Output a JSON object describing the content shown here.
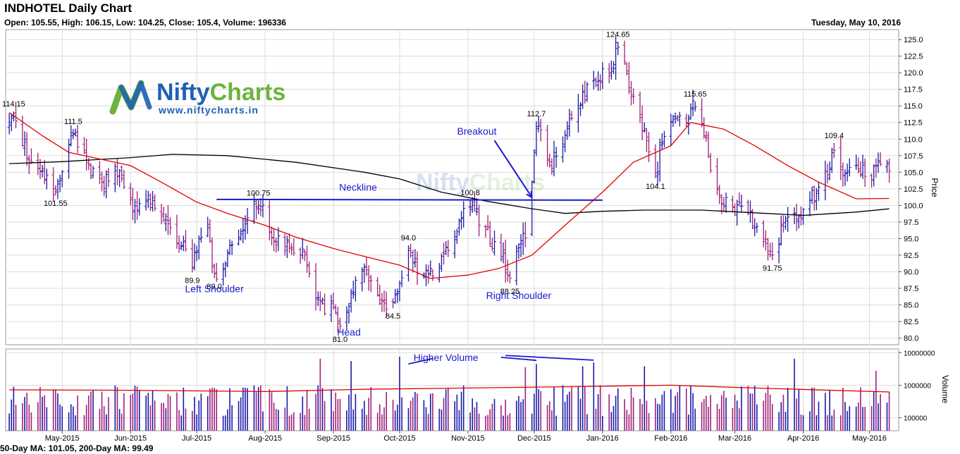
{
  "header": {
    "title": "INDHOTEL Daily Chart",
    "ohlc": "Open: 105.55, High: 106.15, Low: 104.25, Close: 105.4, Volume: 196336",
    "date": "Tuesday, May 10, 2016"
  },
  "footer": {
    "ma_text": "50-Day MA: 101.05, 200-Day MA: 99.49"
  },
  "watermark": {
    "brand_left": "Nifty",
    "brand_right": "Charts",
    "url": "www.niftycharts.in"
  },
  "colors": {
    "up": "#1a1aa8",
    "down": "#a0207a",
    "ma50": "#e00000",
    "ma200": "#000000",
    "annotation": "#1a1acc",
    "grid": "#dcdcdc",
    "panel_border": "#999999",
    "logo_blue": "#1f5fb4",
    "logo_green": "#6cb33f"
  },
  "chart_data": [
    {
      "type": "ohlc",
      "title": "INDHOTEL Daily Chart",
      "ylabel": "Price",
      "ylim": [
        79,
        126.5
      ],
      "yticks": [
        80.0,
        82.5,
        85.0,
        87.5,
        90.0,
        92.5,
        95.0,
        97.5,
        100.0,
        102.5,
        105.0,
        107.5,
        110.0,
        112.5,
        115.0,
        117.5,
        120.0,
        122.5,
        125.0
      ],
      "x_range": [
        "2015-04-06",
        "2016-05-13"
      ],
      "xticks": [
        {
          "date": "2015-05-01",
          "label": "May-2015"
        },
        {
          "date": "2015-06-01",
          "label": "Jun-2015"
        },
        {
          "date": "2015-07-01",
          "label": "Jul-2015"
        },
        {
          "date": "2015-08-01",
          "label": "Aug-2015"
        },
        {
          "date": "2015-09-01",
          "label": "Sep-2015"
        },
        {
          "date": "2015-10-01",
          "label": "Oct-2015"
        },
        {
          "date": "2015-11-01",
          "label": "Nov-2015"
        },
        {
          "date": "2015-12-01",
          "label": "Dec-2015"
        },
        {
          "date": "2016-01-01",
          "label": "Jan-2016"
        },
        {
          "date": "2016-02-01",
          "label": "Feb-2016"
        },
        {
          "date": "2016-03-01",
          "label": "Mar-2016"
        },
        {
          "date": "2016-04-01",
          "label": "Apr-2016"
        },
        {
          "date": "2016-05-01",
          "label": "May-2016"
        }
      ],
      "grid": true,
      "anchors": [
        [
          "2015-04-07",
          111.5
        ],
        [
          "2015-04-09",
          114.15
        ],
        [
          "2015-04-16",
          107
        ],
        [
          "2015-04-24",
          104.5
        ],
        [
          "2015-04-28",
          101.55
        ],
        [
          "2015-05-04",
          108.5
        ],
        [
          "2015-05-06",
          111.5
        ],
        [
          "2015-05-13",
          105.5
        ],
        [
          "2015-05-20",
          103.5
        ],
        [
          "2015-05-27",
          105
        ],
        [
          "2015-06-02",
          100
        ],
        [
          "2015-06-10",
          101
        ],
        [
          "2015-06-17",
          97
        ],
        [
          "2015-06-26",
          93
        ],
        [
          "2015-06-29",
          89.9
        ],
        [
          "2015-07-02",
          96
        ],
        [
          "2015-07-06",
          97
        ],
        [
          "2015-07-09",
          89
        ],
        [
          "2015-07-16",
          93
        ],
        [
          "2015-07-24",
          98.5
        ],
        [
          "2015-07-29",
          100.75
        ],
        [
          "2015-08-05",
          95
        ],
        [
          "2015-08-12",
          94
        ],
        [
          "2015-08-19",
          92.5
        ],
        [
          "2015-08-24",
          86.5
        ],
        [
          "2015-08-28",
          84.5
        ],
        [
          "2015-09-01",
          85
        ],
        [
          "2015-09-04",
          81
        ],
        [
          "2015-09-10",
          88
        ],
        [
          "2015-09-15",
          90.5
        ],
        [
          "2015-09-21",
          86.5
        ],
        [
          "2015-09-28",
          84.5
        ],
        [
          "2015-10-01",
          88
        ],
        [
          "2015-10-05",
          94
        ],
        [
          "2015-10-08",
          91
        ],
        [
          "2015-10-14",
          89
        ],
        [
          "2015-10-21",
          92
        ],
        [
          "2015-10-27",
          96.5
        ],
        [
          "2015-11-02",
          100.8
        ],
        [
          "2015-11-06",
          98
        ],
        [
          "2015-11-12",
          94.5
        ],
        [
          "2015-11-17",
          92
        ],
        [
          "2015-11-20",
          88.25
        ],
        [
          "2015-11-24",
          94
        ],
        [
          "2015-11-27",
          96
        ],
        [
          "2015-11-30",
          103
        ],
        [
          "2015-12-02",
          112.7
        ],
        [
          "2015-12-08",
          106
        ],
        [
          "2015-12-14",
          110
        ],
        [
          "2015-12-21",
          115
        ],
        [
          "2015-12-28",
          119
        ],
        [
          "2016-01-04",
          120
        ],
        [
          "2016-01-08",
          124.65
        ],
        [
          "2016-01-13",
          118
        ],
        [
          "2016-01-18",
          113
        ],
        [
          "2016-01-22",
          108
        ],
        [
          "2016-01-25",
          104.1
        ],
        [
          "2016-01-28",
          110
        ],
        [
          "2016-02-02",
          113
        ],
        [
          "2016-02-09",
          113.5
        ],
        [
          "2016-02-12",
          115.65
        ],
        [
          "2016-02-16",
          111
        ],
        [
          "2016-02-19",
          106
        ],
        [
          "2016-02-24",
          101
        ],
        [
          "2016-03-01",
          99.5
        ],
        [
          "2016-03-07",
          99
        ],
        [
          "2016-03-11",
          97
        ],
        [
          "2016-03-15",
          94
        ],
        [
          "2016-03-18",
          91.75
        ],
        [
          "2016-03-22",
          96
        ],
        [
          "2016-03-24",
          99
        ],
        [
          "2016-03-29",
          98
        ],
        [
          "2016-04-04",
          101
        ],
        [
          "2016-04-08",
          102
        ],
        [
          "2016-04-12",
          105
        ],
        [
          "2016-04-15",
          109.4
        ],
        [
          "2016-04-20",
          104.5
        ],
        [
          "2016-04-25",
          106
        ],
        [
          "2016-05-02",
          104.5
        ],
        [
          "2016-05-06",
          106
        ],
        [
          "2016-05-10",
          105.4
        ]
      ],
      "ma50": [
        [
          "2015-04-07",
          114
        ],
        [
          "2015-04-22",
          110.5
        ],
        [
          "2015-05-04",
          108
        ],
        [
          "2015-05-18",
          107
        ],
        [
          "2015-06-01",
          106
        ],
        [
          "2015-06-15",
          103.5
        ],
        [
          "2015-07-01",
          100.5
        ],
        [
          "2015-07-15",
          98.8
        ],
        [
          "2015-08-01",
          97
        ],
        [
          "2015-08-15",
          95.2
        ],
        [
          "2015-09-01",
          93.5
        ],
        [
          "2015-09-15",
          92.3
        ],
        [
          "2015-10-01",
          91
        ],
        [
          "2015-10-15",
          89
        ],
        [
          "2015-11-01",
          89.5
        ],
        [
          "2015-11-15",
          90.5
        ],
        [
          "2015-11-30",
          92.5
        ],
        [
          "2015-12-15",
          97
        ],
        [
          "2016-01-01",
          102
        ],
        [
          "2016-01-15",
          106.5
        ],
        [
          "2016-02-01",
          109
        ],
        [
          "2016-02-10",
          112.5
        ],
        [
          "2016-02-25",
          111.5
        ],
        [
          "2016-03-10",
          109
        ],
        [
          "2016-03-25",
          106
        ],
        [
          "2016-04-08",
          103.5
        ],
        [
          "2016-04-25",
          101
        ],
        [
          "2016-05-10",
          101.05
        ]
      ],
      "ma200": [
        [
          "2015-04-07",
          106.3
        ],
        [
          "2015-05-01",
          106.6
        ],
        [
          "2015-06-01",
          107.2
        ],
        [
          "2015-06-20",
          107.7
        ],
        [
          "2015-07-15",
          107.5
        ],
        [
          "2015-08-15",
          106.5
        ],
        [
          "2015-09-15",
          105
        ],
        [
          "2015-10-01",
          104
        ],
        [
          "2015-10-20",
          102
        ],
        [
          "2015-11-10",
          100.6
        ],
        [
          "2015-11-30",
          99.5
        ],
        [
          "2015-12-15",
          98.8
        ],
        [
          "2015-12-31",
          99.1
        ],
        [
          "2016-01-20",
          99.3
        ],
        [
          "2016-02-15",
          99.3
        ],
        [
          "2016-03-15",
          98.8
        ],
        [
          "2016-04-01",
          98.5
        ],
        [
          "2016-04-25",
          99
        ],
        [
          "2016-05-10",
          99.49
        ]
      ],
      "labels": [
        {
          "date": "2015-04-09",
          "value": "114.15",
          "pos": "above"
        },
        {
          "date": "2015-05-06",
          "value": "111.5",
          "pos": "above"
        },
        {
          "date": "2015-04-28",
          "value": "101.55",
          "pos": "below"
        },
        {
          "date": "2015-06-29",
          "value": "89.9",
          "pos": "below"
        },
        {
          "date": "2015-07-09",
          "value": "89.0",
          "pos": "below"
        },
        {
          "date": "2015-07-29",
          "value": "100.75",
          "pos": "above"
        },
        {
          "date": "2015-09-04",
          "value": "81.0",
          "pos": "below"
        },
        {
          "date": "2015-09-28",
          "value": "84.5",
          "pos": "below"
        },
        {
          "date": "2015-10-05",
          "value": "94.0",
          "pos": "above"
        },
        {
          "date": "2015-11-02",
          "value": "100.8",
          "pos": "above"
        },
        {
          "date": "2015-11-20",
          "value": "88.25",
          "pos": "below"
        },
        {
          "date": "2015-12-02",
          "value": "112.7",
          "pos": "above"
        },
        {
          "date": "2016-01-08",
          "value": "124.65",
          "pos": "above"
        },
        {
          "date": "2016-01-25",
          "value": "104.1",
          "pos": "below"
        },
        {
          "date": "2016-02-12",
          "value": "115.65",
          "pos": "above"
        },
        {
          "date": "2016-03-18",
          "value": "91.75",
          "pos": "below"
        },
        {
          "date": "2016-04-15",
          "value": "109.4",
          "pos": "above"
        }
      ],
      "annotations": {
        "neckline": {
          "text": "Neckline",
          "from": [
            "2015-07-10",
            100.9
          ],
          "to": [
            "2016-01-01",
            100.8
          ]
        },
        "breakout": {
          "text": "Breakout",
          "arrow_from": [
            "2015-11-13",
            109.8
          ],
          "arrow_to": [
            "2015-11-30",
            101.2
          ]
        },
        "left_shoulder": {
          "text": "Left Shoulder",
          "date": "2015-07-09",
          "value": 86.9
        },
        "head": {
          "text": "Head",
          "date": "2015-09-08",
          "value": 80.4
        },
        "right_shoulder": {
          "text": "Right Shoulder",
          "date": "2015-11-24",
          "value": 85.9
        }
      }
    },
    {
      "type": "bar",
      "ylabel": "Volume",
      "scale": "log",
      "ylim": [
        40000,
        13000000
      ],
      "yticks": [
        100000,
        1000000,
        10000000
      ],
      "ma_level": [
        [
          "2015-04-07",
          720000
        ],
        [
          "2015-06-01",
          700000
        ],
        [
          "2015-08-01",
          640000
        ],
        [
          "2015-09-15",
          750000
        ],
        [
          "2015-11-01",
          820000
        ],
        [
          "2015-12-15",
          900000
        ],
        [
          "2016-02-01",
          1000000
        ],
        [
          "2016-03-15",
          800000
        ],
        [
          "2016-05-10",
          620000
        ]
      ],
      "spikes": [
        [
          "2015-08-26",
          6500000
        ],
        [
          "2015-09-09",
          5500000
        ],
        [
          "2015-10-01",
          7500000
        ],
        [
          "2015-11-27",
          3600000
        ],
        [
          "2015-12-02",
          4500000
        ],
        [
          "2015-12-23",
          3800000
        ],
        [
          "2015-12-28",
          5000000
        ],
        [
          "2016-01-20",
          3800000
        ],
        [
          "2016-03-28",
          6500000
        ],
        [
          "2016-05-04",
          2800000
        ]
      ],
      "annotations": {
        "higher_volume": {
          "text": "Higher Volume",
          "date": "2015-10-22",
          "value": 6800000,
          "lines": [
            {
              "from": [
                "2015-10-05",
                4500000
              ],
              "to": [
                "2015-10-16",
                6600000
              ]
            },
            {
              "from": [
                "2015-11-16",
                7200000
              ],
              "to": [
                "2015-12-02",
                5800000
              ]
            },
            {
              "from": [
                "2015-11-18",
                8200000
              ],
              "to": [
                "2015-12-28",
                5900000
              ]
            }
          ]
        }
      }
    }
  ]
}
